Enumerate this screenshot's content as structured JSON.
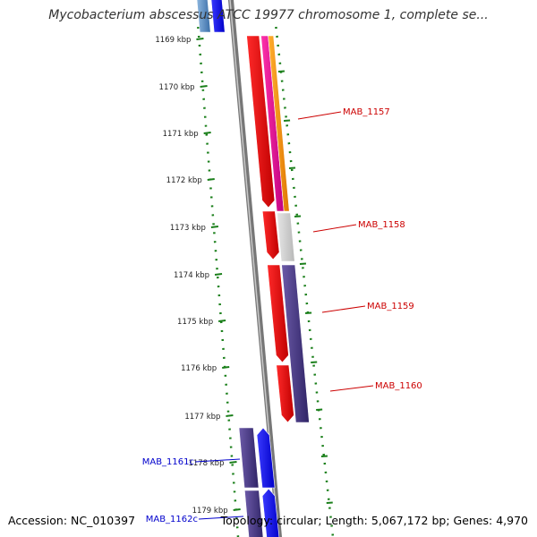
{
  "title": "Mycobacterium abscessus ATCC 19977 chromosome 1, complete se...",
  "footer": {
    "accession": "Accession: NC_010397",
    "stats": "Topology: circular; Length: 5,067,172 bp; Genes: 4,970"
  },
  "colors": {
    "background": "#ffffff",
    "backbone": "#8a8a8a",
    "ruler": "#1a7f1a",
    "label_red": "#cc0000",
    "label_blue": "#0000cc"
  },
  "ruler": {
    "ticks": [
      "1169 kbp",
      "1170 kbp",
      "1171 kbp",
      "1172 kbp",
      "1173 kbp",
      "1174 kbp",
      "1175 kbp",
      "1176 kbp",
      "1177 kbp",
      "1178 kbp",
      "1179 kbp"
    ]
  },
  "genes": [
    {
      "name": "MAB_1157",
      "strand": "forward",
      "label_color": "#cc0000"
    },
    {
      "name": "MAB_1158",
      "strand": "forward",
      "label_color": "#cc0000"
    },
    {
      "name": "MAB_1159",
      "strand": "forward",
      "label_color": "#cc0000"
    },
    {
      "name": "MAB_1160",
      "strand": "forward",
      "label_color": "#cc0000"
    },
    {
      "name": "MAB_1161c",
      "strand": "reverse",
      "label_color": "#0000cc"
    },
    {
      "name": "MAB_1162c",
      "strand": "reverse",
      "label_color": "#0000cc"
    }
  ]
}
